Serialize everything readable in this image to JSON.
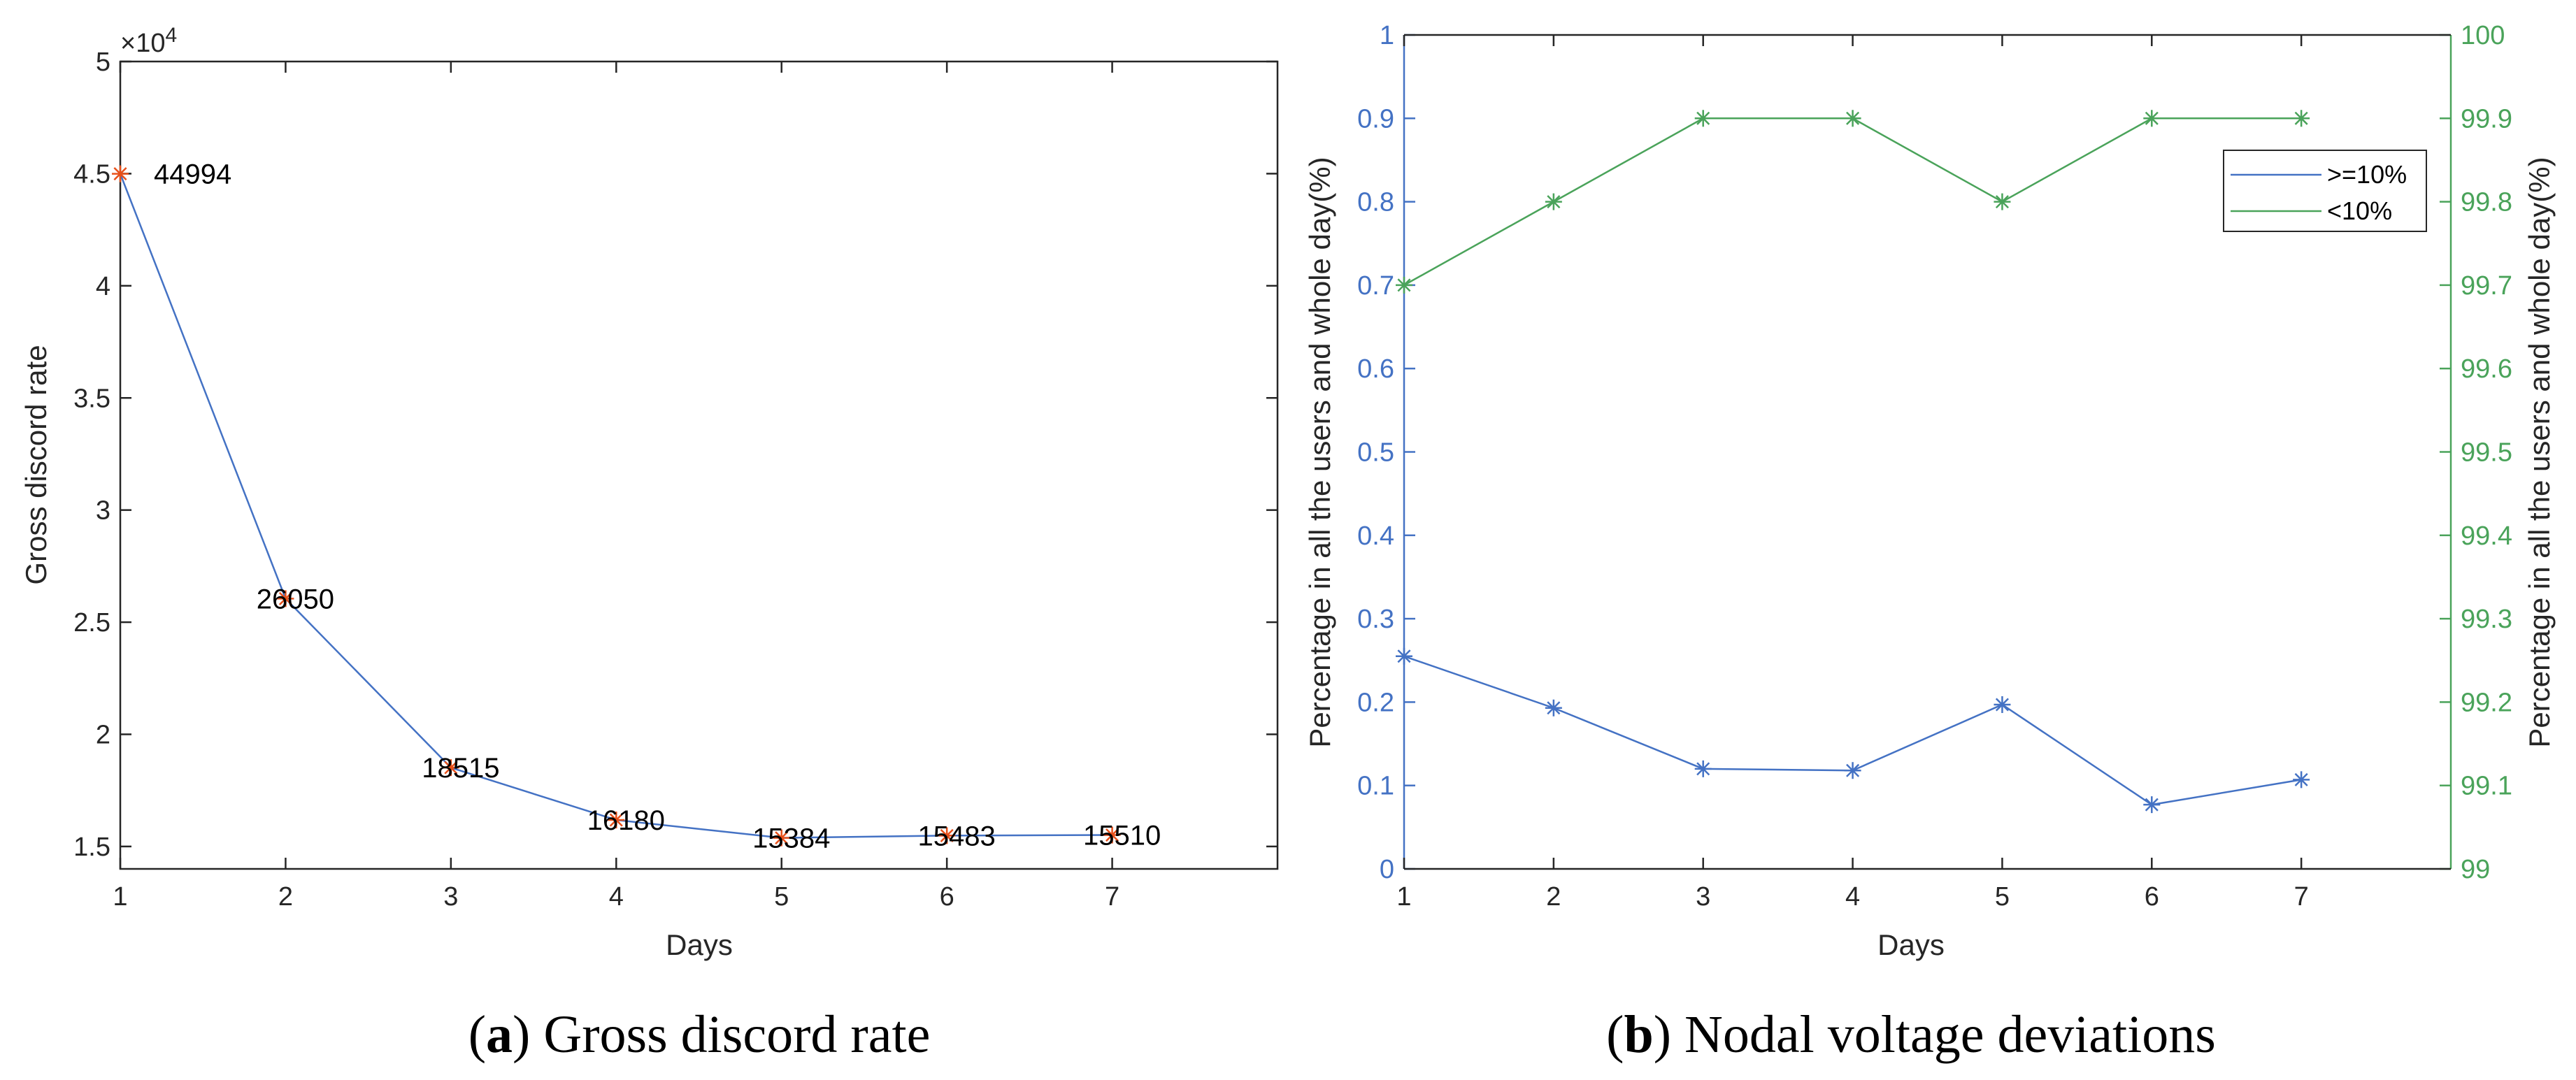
{
  "chart_data": [
    {
      "type": "line",
      "id": "a",
      "title": "Gross discord rate",
      "caption_letter": "a",
      "caption_text": "Gross discord rate",
      "xlabel": "Days",
      "ylabel": "Gross discord rate",
      "exponent_label": "×10",
      "exponent_power": "4",
      "xlim": [
        1,
        8
      ],
      "ylim": [
        1.4,
        5
      ],
      "xticks": [
        1,
        2,
        3,
        4,
        5,
        6,
        7
      ],
      "yticks": [
        1.5,
        2,
        2.5,
        3,
        3.5,
        4,
        4.5,
        5
      ],
      "ytick_labels": [
        "1.5",
        "2",
        "2.5",
        "3",
        "3.5",
        "4",
        "4.5",
        "5"
      ],
      "x": [
        1,
        2,
        3,
        4,
        5,
        6,
        7
      ],
      "y": [
        4.4994,
        2.605,
        1.8515,
        1.618,
        1.5384,
        1.5483,
        1.551
      ],
      "data_labels": [
        "44994",
        "26050",
        "18515",
        "16180",
        "15384",
        "15483",
        "15510"
      ],
      "line_color": "#4472c4",
      "marker_color": "#e8501a",
      "marker": "*"
    },
    {
      "type": "line",
      "id": "b",
      "title": "Nodal voltage deviations",
      "caption_letter": "b",
      "caption_text": "Nodal voltage deviations",
      "xlabel": "Days",
      "ylabel_left": "Percentage in all the users and whole day(%)",
      "ylabel_right": "Percentage in all the users and whole day(%)",
      "xlim": [
        1,
        8
      ],
      "ylim_left": [
        0,
        1
      ],
      "ylim_right": [
        99,
        100
      ],
      "xticks": [
        1,
        2,
        3,
        4,
        5,
        6,
        7
      ],
      "yticks_left": [
        0,
        0.1,
        0.2,
        0.3,
        0.4,
        0.5,
        0.6,
        0.7,
        0.8,
        0.9,
        1
      ],
      "ytick_labels_left": [
        "0",
        "0.1",
        "0.2",
        "0.3",
        "0.4",
        "0.5",
        "0.6",
        "0.7",
        "0.8",
        "0.9",
        "1"
      ],
      "yticks_right": [
        99,
        99.1,
        99.2,
        99.3,
        99.4,
        99.5,
        99.6,
        99.7,
        99.8,
        99.9,
        100
      ],
      "ytick_labels_right": [
        "99",
        "99.1",
        "99.2",
        "99.3",
        "99.4",
        "99.5",
        "99.6",
        "99.7",
        "99.8",
        "99.9",
        "100"
      ],
      "left_color": "#4472c4",
      "right_color": "#4aa35a",
      "series": [
        {
          "name": ">=10%",
          "axis": "left",
          "x": [
            1,
            2,
            3,
            4,
            5,
            6,
            7
          ],
          "values": [
            0.255,
            0.193,
            0.12,
            0.118,
            0.197,
            0.077,
            0.107
          ],
          "color": "#4472c4"
        },
        {
          "name": "<10%",
          "axis": "right",
          "x": [
            1,
            2,
            3,
            4,
            5,
            6,
            7
          ],
          "values": [
            99.7,
            99.8,
            99.9,
            99.9,
            99.8,
            99.9,
            99.9
          ],
          "color": "#4aa35a"
        }
      ],
      "legend": ">=10% and <10%",
      "legend_position": "top-right"
    }
  ]
}
